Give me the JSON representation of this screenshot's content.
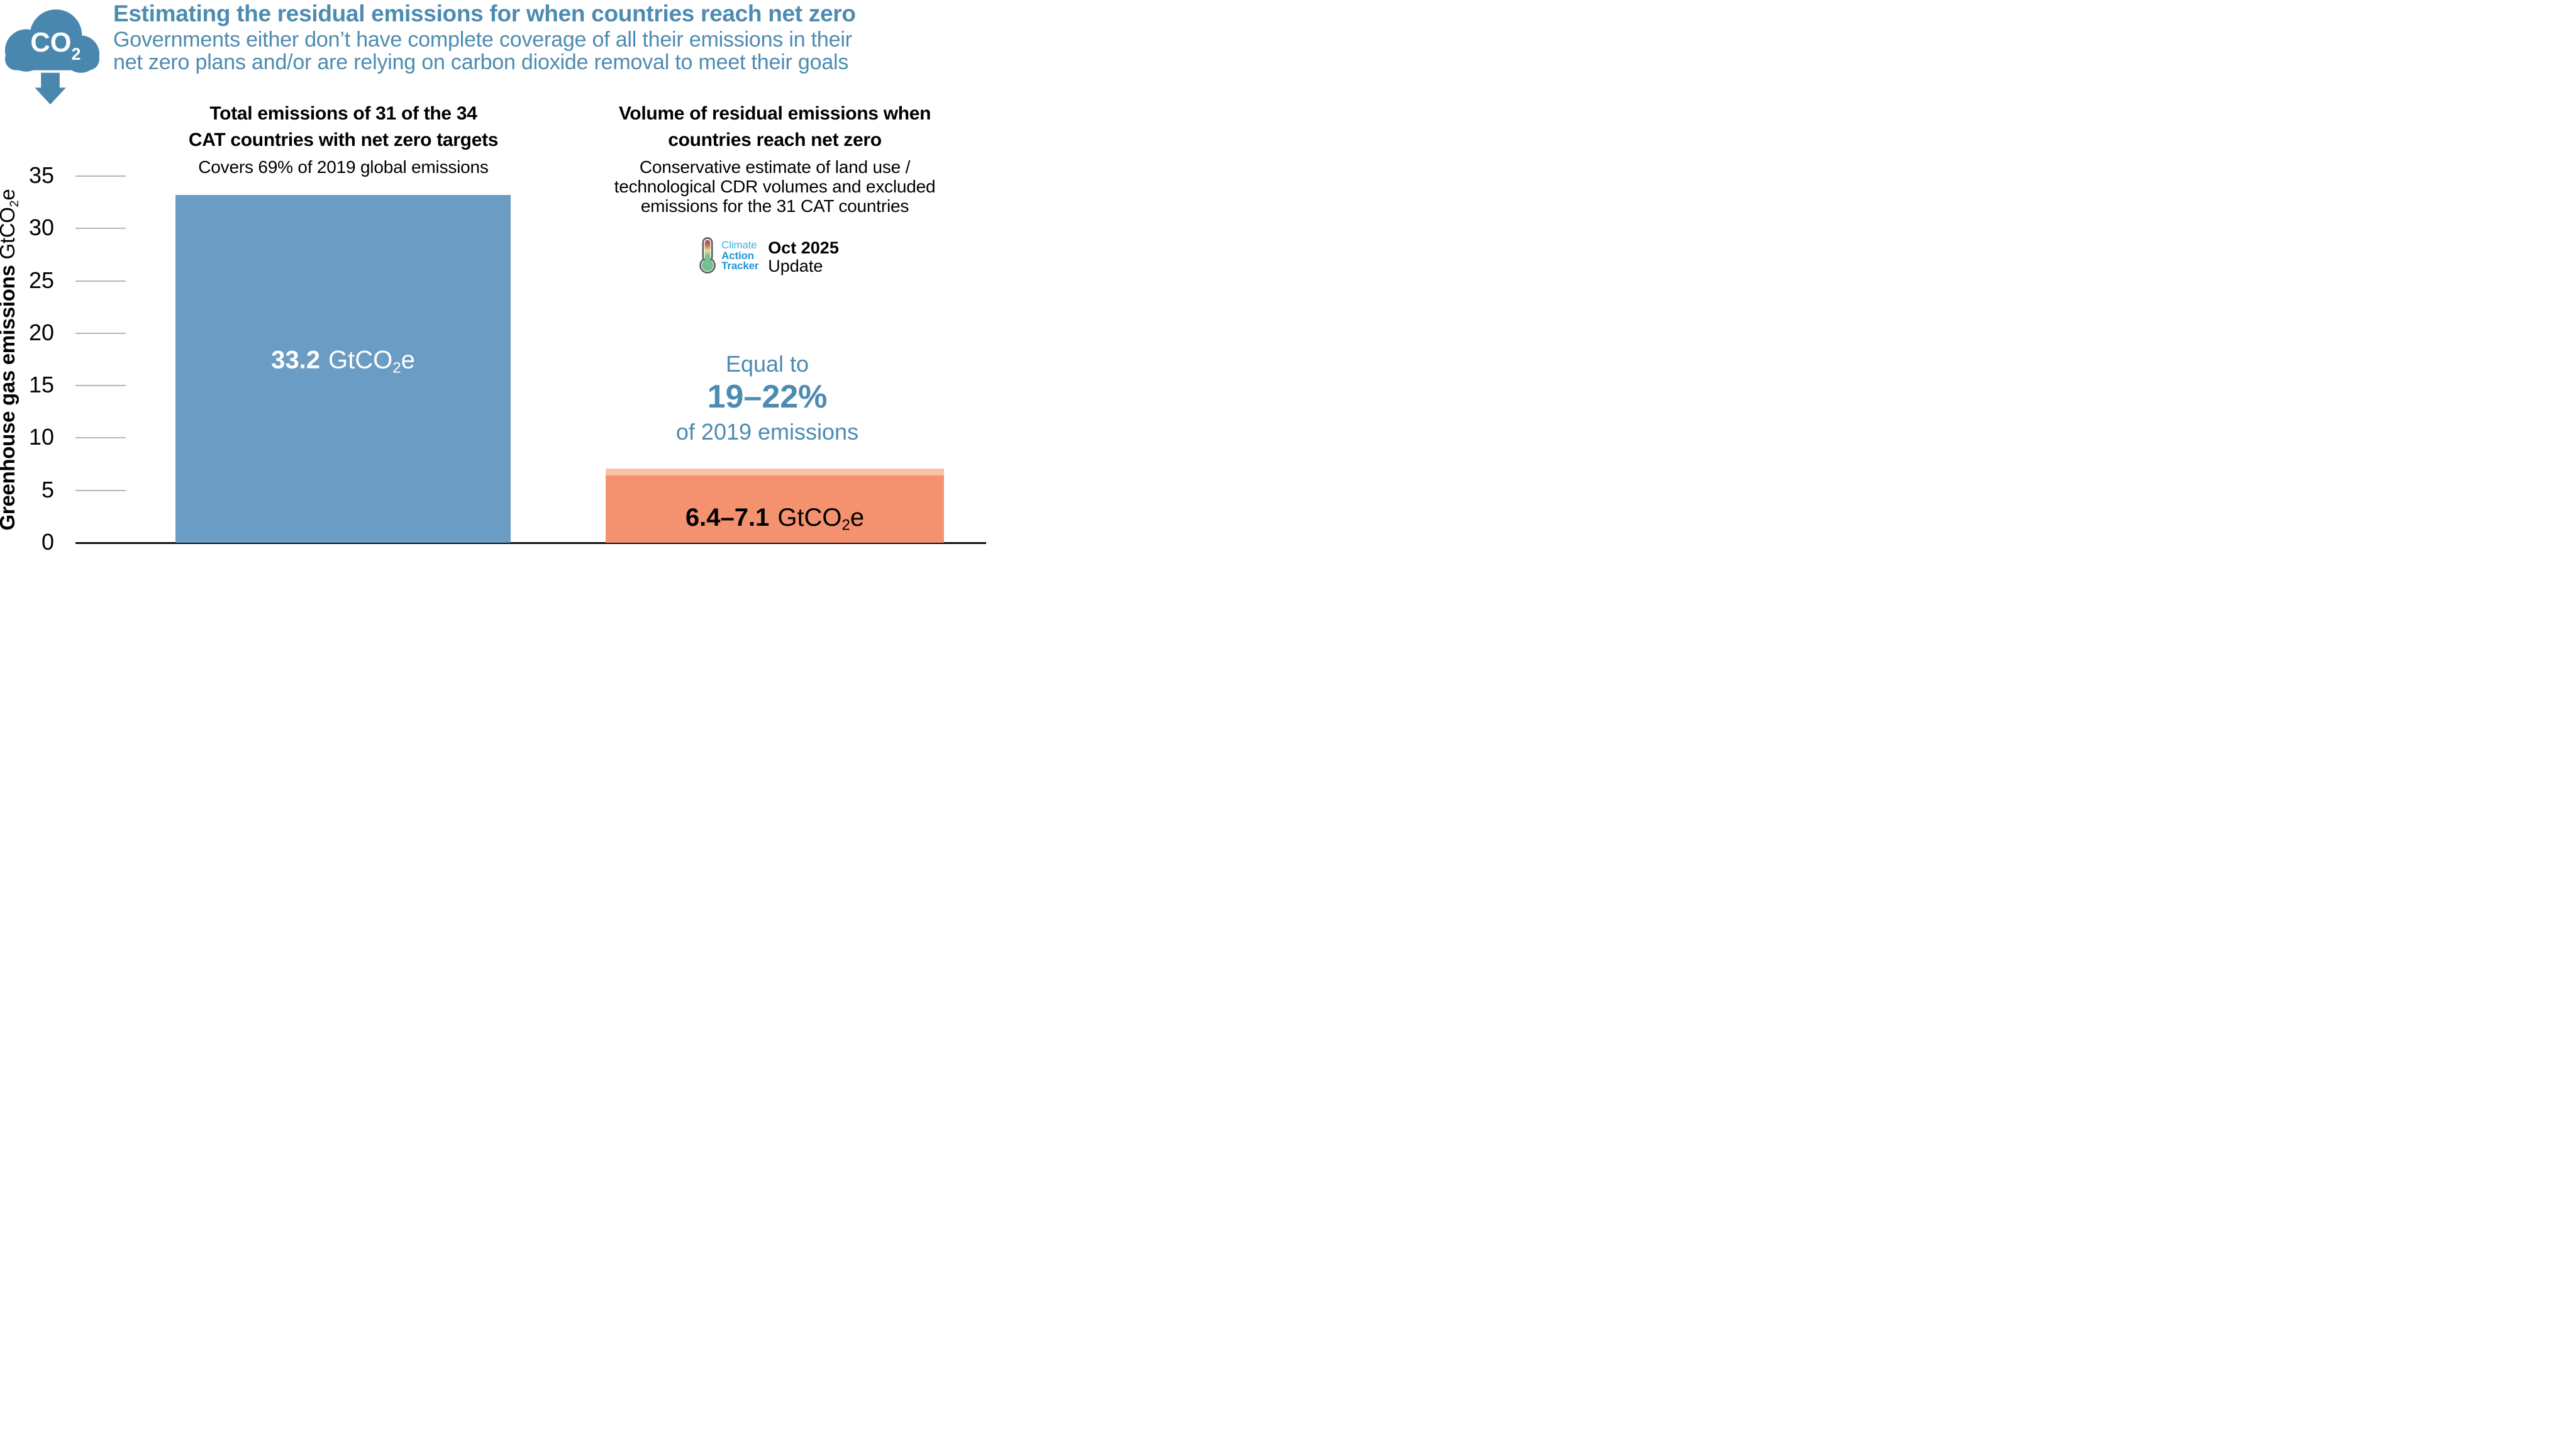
{
  "header": {
    "title": "Estimating the residual emissions for when countries reach net zero",
    "subtitle_line1": "Governments either don’t have complete coverage of all their emissions in their",
    "subtitle_line2": "net zero plans and/or are relying on carbon dioxide removal to meet their goals",
    "icon_label": "CO",
    "icon_label_sub": "2",
    "text_color": "#4d8bb1",
    "icon_color": "#4a87ae"
  },
  "left_column": {
    "heading_line1": "Total emissions of 31 of the 34",
    "heading_line2": "CAT countries with net zero targets",
    "subheading": "Covers 69% of 2019 global emissions"
  },
  "right_column": {
    "heading_line1": "Volume of residual emissions when",
    "heading_line2": "countries reach net zero",
    "subheading_line1": "Conservative estimate of land use /",
    "subheading_line2": "technological CDR volumes and excluded",
    "subheading_line3": "emissions for the 31 CAT countries",
    "logo": {
      "name_line1": "Climate",
      "name_line2": "Action",
      "name_line3": "Tracker",
      "release_line1": "Oct 2025",
      "release_line2": "Update",
      "name_color_light": "#3fb3e5",
      "name_color_bold": "#2196d1"
    },
    "equivalence": {
      "line1": "Equal to",
      "value": "19–22%",
      "line3": "of 2019 emissions",
      "color": "#4d8bb1"
    }
  },
  "chart_data": {
    "type": "bar",
    "ylabel_bold": "Greenhouse gas emissions",
    "ylabel_unit_pre": "GtCO",
    "ylabel_unit_sub": "2",
    "ylabel_unit_post": "e",
    "ylim": [
      0,
      35
    ],
    "yticks": [
      0,
      5,
      10,
      15,
      20,
      25,
      30,
      35
    ],
    "grid": "short grey dashes at each tick, no full gridlines",
    "legend": "none",
    "categories": [
      "Total emissions of 31 of the 34 CAT countries with net zero targets",
      "Volume of residual emissions when countries reach net zero"
    ],
    "bars": [
      {
        "name": "total-emissions",
        "value": 33.2,
        "label_value": "33.2",
        "unit_pre": "GtCO",
        "unit_sub": "2",
        "unit_post": "e",
        "color": "#6b9cc3",
        "label_color": "#ffffff"
      },
      {
        "name": "residual-emissions",
        "value_low": 6.4,
        "value_high": 7.1,
        "label_value": "6.4–7.1",
        "unit_pre": "GtCO",
        "unit_sub": "2",
        "unit_post": "e",
        "color": "#f4926f",
        "range_cap_color": "#f8c3a6",
        "label_color": "#000000"
      }
    ],
    "axis_color": "#101010",
    "tick_color": "#b5b5b5"
  }
}
